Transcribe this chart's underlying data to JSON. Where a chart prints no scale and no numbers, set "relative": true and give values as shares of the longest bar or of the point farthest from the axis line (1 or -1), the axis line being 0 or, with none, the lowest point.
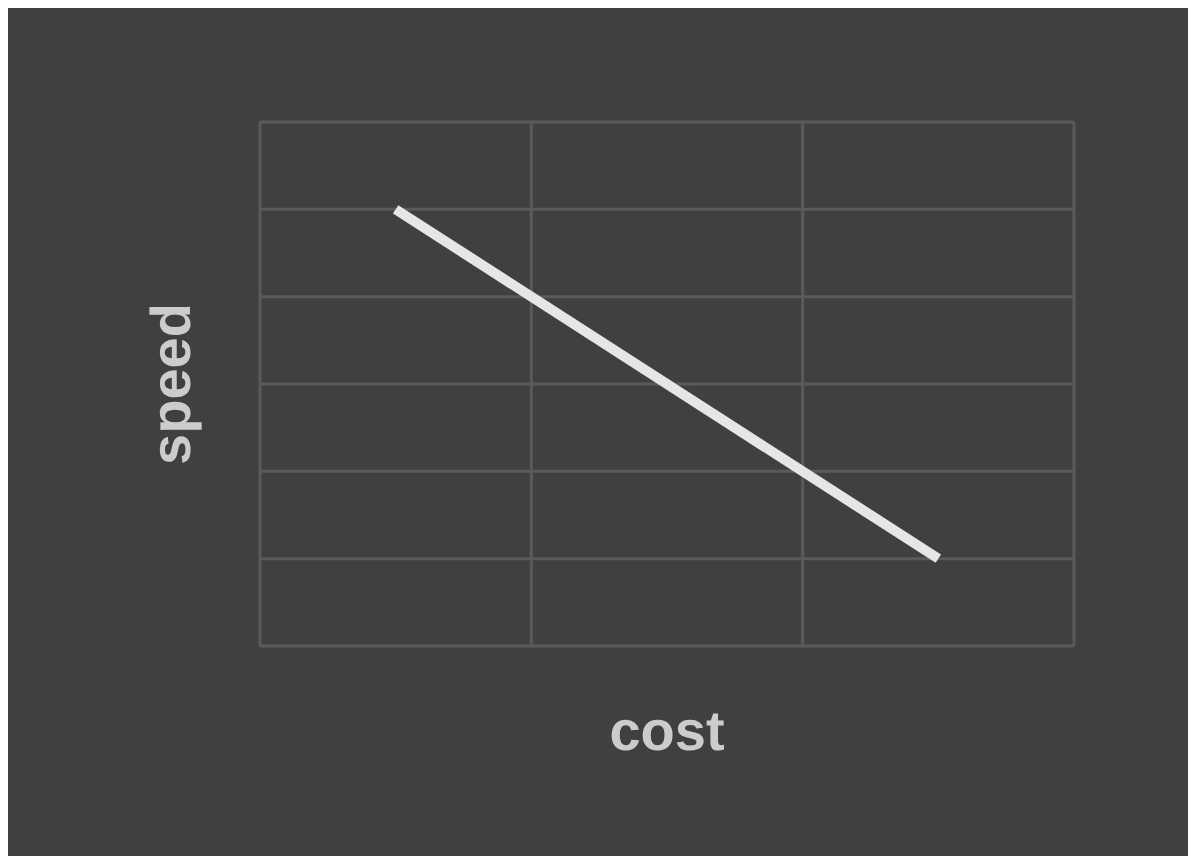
{
  "chart_data": {
    "type": "line",
    "xlabel": "cost",
    "ylabel": "speed",
    "categories": [
      null,
      null
    ],
    "relative": true,
    "grid": true,
    "series": [
      {
        "color": "#e6e6e6",
        "values": [
          1,
          0.2
        ]
      }
    ]
  }
}
